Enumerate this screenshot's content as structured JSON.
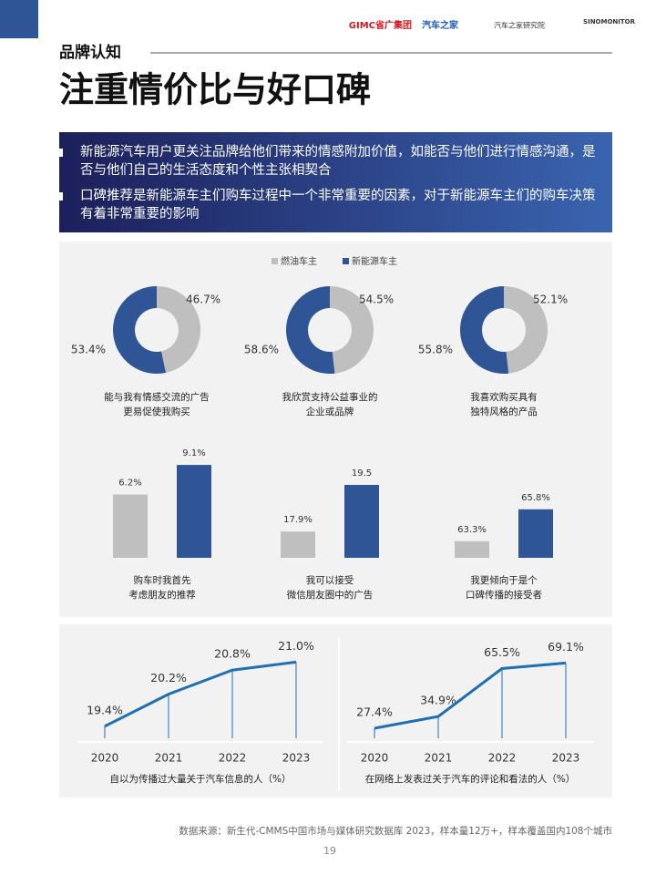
{
  "header": {
    "logos": [
      "GIMC省广集团",
      "汽车之家",
      "汽车之家研究院",
      "SINOMONITOR"
    ],
    "section": "品牌认知",
    "title": "注重情价比与好口碑"
  },
  "bullets": [
    "新能源汽车用户更关注品牌给他们带来的情感附加价值，如能否与他们进行情感沟通，是否与他们自己的生活态度和个性主张相契合",
    "口碑推荐是新能源车主们购车过程中一个非常重要的因素，对于新能源车主们的购车决策有着非常重要的影响"
  ],
  "chart_data": [
    {
      "type": "donut",
      "categories": [
        "能与我有情感交流的广告\n更易促使我购买",
        "我欣赏支持公益事业的\n企业或品牌",
        "我喜欢购买具有\n独特风格的产品"
      ],
      "series": [
        {
          "name": "燃油车主",
          "color": "#bfbfbf",
          "values": [
            46.7,
            54.5,
            52.1
          ],
          "value_labels": [
            "46.7%",
            "54.5%",
            "52.1%"
          ]
        },
        {
          "name": "新能源车主",
          "color": "#2f5597",
          "values": [
            53.4,
            58.6,
            55.8
          ],
          "value_labels": [
            "53.4%",
            "58.6%",
            "55.8%"
          ]
        }
      ]
    },
    {
      "type": "bar",
      "categories": [
        "购车时我首先\n考虑朋友的推荐",
        "我可以接受\n微信朋友圈中的广告",
        "我更倾向于是个\n口碑传播的接受者"
      ],
      "ylims": [
        [
          0,
          10
        ],
        [
          17,
          20.5
        ],
        [
          62,
          70
        ]
      ],
      "series": [
        {
          "name": "燃油车主",
          "color": "#bfbfbf",
          "values": [
            6.2,
            17.9,
            63.3
          ],
          "value_labels": [
            "6.2%",
            "17.9%",
            "63.3%"
          ]
        },
        {
          "name": "新能源车主",
          "color": "#2f5597",
          "values": [
            9.1,
            19.5,
            65.8
          ],
          "value_labels": [
            "9.1%",
            "19.5",
            "65.8%"
          ]
        }
      ]
    },
    {
      "type": "line",
      "title": "自以为传播过大量关于汽车信息的人（%）",
      "categories": [
        "2020",
        "2021",
        "2022",
        "2023"
      ],
      "ylim": [
        19.1,
        21.6
      ],
      "color": "#1f6fb5",
      "values": [
        19.4,
        20.2,
        20.8,
        21.0
      ],
      "value_labels": [
        "19.4%",
        "20.2%",
        "20.8%",
        "21.0%"
      ]
    },
    {
      "type": "line",
      "title": "在网络上发表过关于汽车的评论和看法的人（%）",
      "categories": [
        "2020",
        "2021",
        "2022",
        "2023"
      ],
      "ylim": [
        21,
        85
      ],
      "color": "#1f6fb5",
      "values": [
        27.4,
        34.9,
        65.5,
        69.1
      ],
      "value_labels": [
        "27.4%",
        "34.9%",
        "65.5%",
        "69.1%"
      ]
    }
  ],
  "footer": {
    "source": "数据来源：新生代-CMMS中国市场与媒体研究数据库 2023，样本量12万+，样本覆盖国内108个城市",
    "page": "19"
  }
}
